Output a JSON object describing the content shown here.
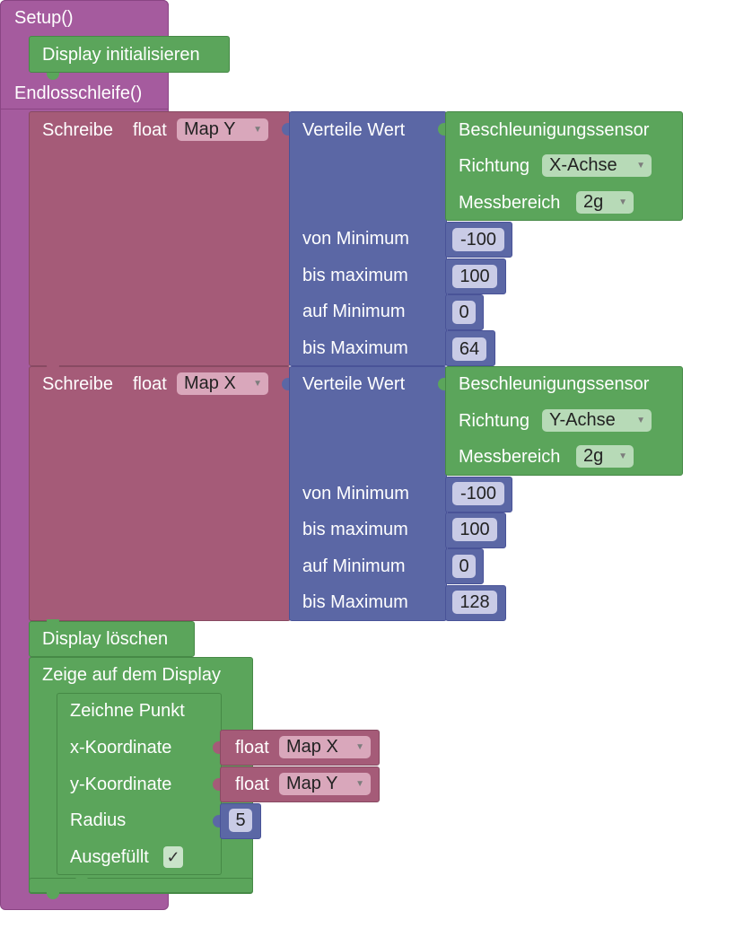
{
  "setup": {
    "label": "Setup()",
    "display_init": "Display initialisieren"
  },
  "loop": {
    "label": "Endlosschleife()"
  },
  "write_y": {
    "label": "Schreibe",
    "type": "float",
    "variable": "Map Y",
    "map": {
      "label": "Verteile Wert",
      "sensor": {
        "label": "Beschleunigungssensor",
        "direction_label": "Richtung",
        "direction": "X-Achse",
        "range_label": "Messbereich",
        "range": "2g"
      },
      "from_min_label": "von Minimum",
      "from_min": "-100",
      "from_max_label": "bis maximum",
      "from_max": "100",
      "to_min_label": "auf Minimum",
      "to_min": "0",
      "to_max_label": "bis Maximum",
      "to_max": "64"
    }
  },
  "write_x": {
    "label": "Schreibe",
    "type": "float",
    "variable": "Map X",
    "map": {
      "label": "Verteile Wert",
      "sensor": {
        "label": "Beschleunigungssensor",
        "direction_label": "Richtung",
        "direction": "Y-Achse",
        "range_label": "Messbereich",
        "range": "2g"
      },
      "from_min_label": "von Minimum",
      "from_min": "-100",
      "from_max_label": "bis maximum",
      "from_max": "100",
      "to_min_label": "auf Minimum",
      "to_min": "0",
      "to_max_label": "bis Maximum",
      "to_max": "128"
    }
  },
  "clear_display": "Display löschen",
  "show_display": {
    "label": "Zeige auf dem Display",
    "draw_point": {
      "label": "Zeichne Punkt",
      "x_label": "x-Koordinate",
      "x_type": "float",
      "x_var": "Map X",
      "y_label": "y-Koordinate",
      "y_type": "float",
      "y_var": "Map Y",
      "radius_label": "Radius",
      "radius": "5",
      "filled_label": "Ausgefüllt",
      "filled": "✓"
    }
  },
  "colors": {
    "control": "#a55b9e",
    "display": "#5ba55b",
    "variable": "#a55b78",
    "math": "#5b67a5"
  },
  "icons": {
    "dropdown": "dropdown-arrow-icon",
    "checkbox": "checkbox-icon"
  }
}
